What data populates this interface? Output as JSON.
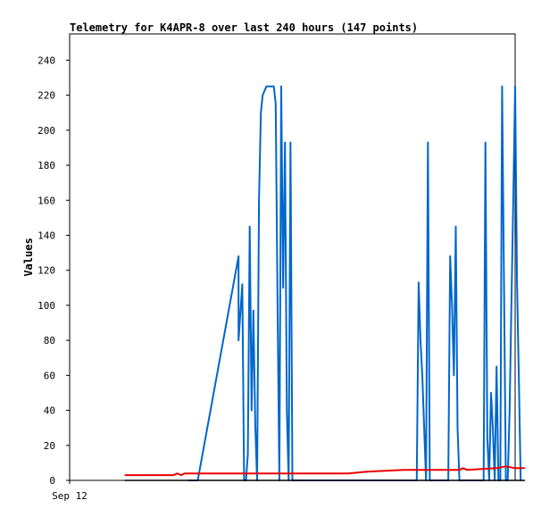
{
  "chart_data": {
    "type": "line",
    "title": "Telemetry for K4APR-8 over last 240 hours (147 points)",
    "xlabel": "",
    "ylabel": "Values",
    "x_tick_labels": [
      "Sep 12"
    ],
    "ylim": [
      0,
      255
    ],
    "y_ticks": [
      0,
      20,
      40,
      60,
      80,
      100,
      120,
      140,
      160,
      180,
      200,
      220,
      240
    ],
    "x_units": "hours",
    "xlim": [
      0,
      240
    ],
    "grid": false,
    "legend": "none",
    "colors": {
      "series_blue": "#0066cc",
      "series_red": "#ee0000",
      "series_black": "#000000"
    },
    "series": [
      {
        "color": "#0066cc",
        "points": [
          [
            64,
            0
          ],
          [
            69,
            0
          ],
          [
            91,
            128
          ],
          [
            91,
            80
          ],
          [
            93,
            112
          ],
          [
            94,
            0
          ],
          [
            95,
            0
          ],
          [
            96,
            15
          ],
          [
            97,
            145
          ],
          [
            98,
            40
          ],
          [
            99,
            97
          ],
          [
            100,
            32
          ],
          [
            101,
            0
          ],
          [
            102,
            160
          ],
          [
            103,
            210
          ],
          [
            104,
            220
          ],
          [
            106,
            225
          ],
          [
            110,
            225
          ],
          [
            111,
            215
          ],
          [
            112,
            100
          ],
          [
            113,
            0
          ],
          [
            114,
            225
          ],
          [
            115,
            110
          ],
          [
            116,
            193
          ],
          [
            117,
            40
          ],
          [
            118,
            0
          ],
          [
            119,
            193
          ],
          [
            120,
            0
          ],
          [
            187,
            0
          ],
          [
            188,
            113
          ],
          [
            189,
            80
          ],
          [
            190,
            60
          ],
          [
            191,
            30
          ],
          [
            192,
            0
          ],
          [
            193,
            193
          ],
          [
            194,
            0
          ],
          [
            204,
            0
          ],
          [
            205,
            128
          ],
          [
            206,
            100
          ],
          [
            207,
            60
          ],
          [
            208,
            145
          ],
          [
            209,
            30
          ],
          [
            210,
            0
          ],
          [
            223,
            0
          ],
          [
            224,
            193
          ],
          [
            225,
            25
          ],
          [
            226,
            0
          ],
          [
            227,
            50
          ],
          [
            228,
            30
          ],
          [
            229,
            0
          ],
          [
            230,
            65
          ],
          [
            231,
            0
          ],
          [
            232,
            0
          ],
          [
            233,
            225
          ],
          [
            234,
            113
          ],
          [
            235,
            0
          ],
          [
            236,
            0
          ],
          [
            237,
            40
          ],
          [
            238,
            100
          ],
          [
            239,
            160
          ],
          [
            240,
            225
          ],
          [
            241,
            113
          ],
          [
            242,
            57
          ],
          [
            243,
            0
          ]
        ]
      },
      {
        "color": "#ee0000",
        "points": [
          [
            30,
            3
          ],
          [
            56,
            3
          ],
          [
            58,
            4
          ],
          [
            60,
            3
          ],
          [
            62,
            4
          ],
          [
            100,
            4
          ],
          [
            150,
            4
          ],
          [
            160,
            5
          ],
          [
            180,
            6
          ],
          [
            200,
            6
          ],
          [
            210,
            6
          ],
          [
            212,
            7
          ],
          [
            214,
            6
          ],
          [
            230,
            7
          ],
          [
            235,
            8
          ],
          [
            240,
            7
          ],
          [
            245,
            7
          ]
        ]
      },
      {
        "color": "#000000",
        "points": [
          [
            30,
            0
          ],
          [
            245,
            0
          ]
        ]
      }
    ]
  }
}
